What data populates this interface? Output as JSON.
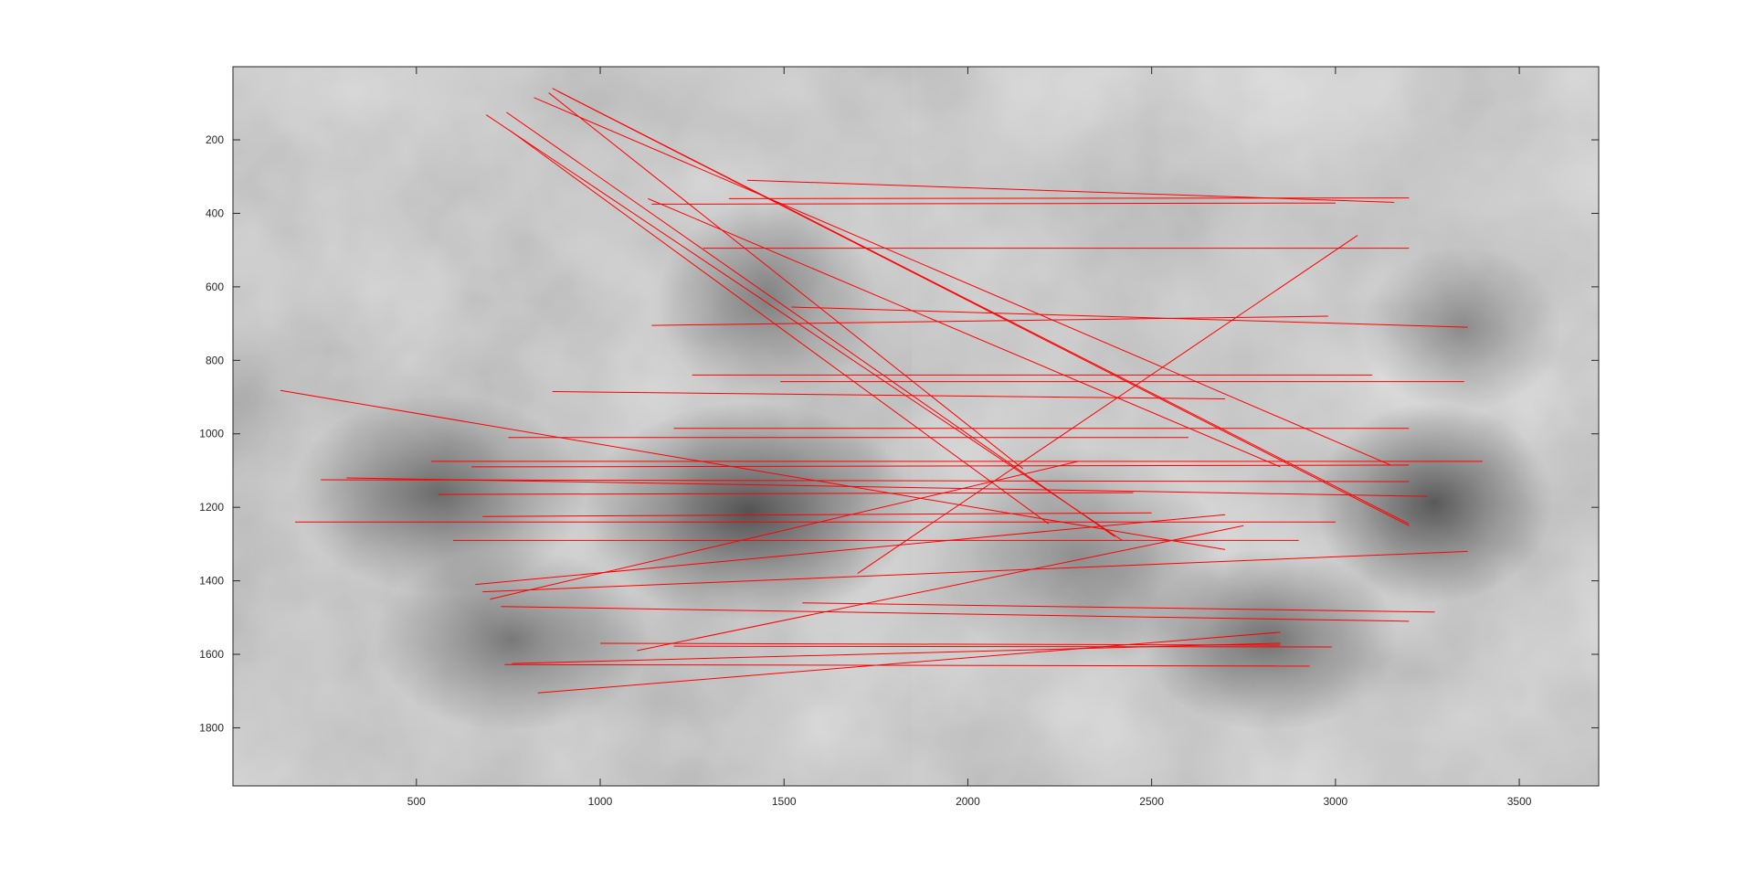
{
  "chart_data": {
    "type": "scatter",
    "title": "",
    "xlabel": "",
    "ylabel": "",
    "xlim": [
      1,
      3716
    ],
    "ylim": [
      1,
      1958
    ],
    "y_reversed": true,
    "grid": false,
    "x_ticks": [
      500,
      1000,
      1500,
      2000,
      2500,
      3000,
      3500
    ],
    "y_ticks": [
      200,
      400,
      600,
      800,
      1000,
      1200,
      1400,
      1600,
      1800
    ],
    "image_split_x": 1858,
    "colors": {
      "line": "#ff0000",
      "axis": "#262626",
      "background": "#ffffff"
    },
    "series": [
      {
        "values": [
          [
            [
              870,
              60
            ],
            [
              3200,
              1245
            ]
          ],
          [
            [
              885,
              68
            ],
            [
              3200,
              1250
            ]
          ],
          [
            [
              820,
              85
            ],
            [
              3150,
              1085
            ]
          ],
          [
            [
              690,
              132
            ],
            [
              2420,
              1290
            ]
          ],
          [
            [
              745,
              125
            ],
            [
              2400,
              1280
            ]
          ],
          [
            [
              755,
              175
            ],
            [
              2220,
              1245
            ]
          ],
          [
            [
              860,
              72
            ],
            [
              2150,
              1095
            ]
          ],
          [
            [
              1130,
              360
            ],
            [
              2850,
              1090
            ]
          ],
          [
            [
              1400,
              310
            ],
            [
              3160,
              370
            ]
          ],
          [
            [
              1140,
              375
            ],
            [
              3000,
              372
            ]
          ],
          [
            [
              1350,
              360
            ],
            [
              3200,
              358
            ]
          ],
          [
            [
              1280,
              495
            ],
            [
              3200,
              495
            ]
          ],
          [
            [
              1140,
              705
            ],
            [
              2980,
              680
            ]
          ],
          [
            [
              1520,
              655
            ],
            [
              3360,
              710
            ]
          ],
          [
            [
              1250,
              840
            ],
            [
              3100,
              840
            ]
          ],
          [
            [
              1490,
              858
            ],
            [
              3350,
              858
            ]
          ],
          [
            [
              870,
              885
            ],
            [
              2700,
              905
            ]
          ],
          [
            [
              130,
              882
            ],
            [
              2700,
              1315
            ]
          ],
          [
            [
              1200,
              985
            ],
            [
              3200,
              985
            ]
          ],
          [
            [
              750,
              1010
            ],
            [
              2600,
              1010
            ]
          ],
          [
            [
              540,
              1075
            ],
            [
              3400,
              1075
            ]
          ],
          [
            [
              650,
              1090
            ],
            [
              3200,
              1085
            ]
          ],
          [
            [
              310,
              1120
            ],
            [
              3250,
              1170
            ]
          ],
          [
            [
              240,
              1125
            ],
            [
              3200,
              1130
            ]
          ],
          [
            [
              560,
              1165
            ],
            [
              2450,
              1160
            ]
          ],
          [
            [
              680,
              1225
            ],
            [
              2500,
              1215
            ]
          ],
          [
            [
              170,
              1240
            ],
            [
              3000,
              1240
            ]
          ],
          [
            [
              600,
              1290
            ],
            [
              2900,
              1290
            ]
          ],
          [
            [
              1700,
              1380
            ],
            [
              3060,
              460
            ]
          ],
          [
            [
              660,
              1410
            ],
            [
              2700,
              1220
            ]
          ],
          [
            [
              680,
              1430
            ],
            [
              3360,
              1320
            ]
          ],
          [
            [
              700,
              1450
            ],
            [
              2300,
              1075
            ]
          ],
          [
            [
              730,
              1470
            ],
            [
              3200,
              1510
            ]
          ],
          [
            [
              1550,
              1460
            ],
            [
              3270,
              1485
            ]
          ],
          [
            [
              1000,
              1570
            ],
            [
              2850,
              1575
            ]
          ],
          [
            [
              1200,
              1578
            ],
            [
              2990,
              1580
            ]
          ],
          [
            [
              740,
              1628
            ],
            [
              2930,
              1632
            ]
          ],
          [
            [
              760,
              1625
            ],
            [
              2850,
              1570
            ]
          ],
          [
            [
              1100,
              1590
            ],
            [
              2750,
              1250
            ]
          ],
          [
            [
              830,
              1705
            ],
            [
              2850,
              1540
            ]
          ]
        ]
      }
    ]
  }
}
